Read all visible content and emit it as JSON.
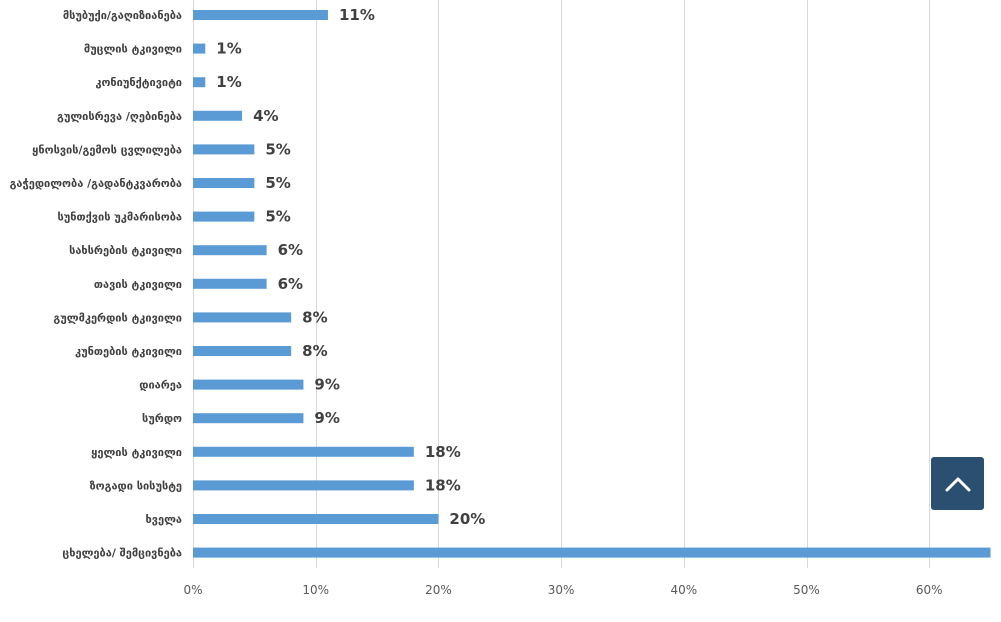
{
  "chart_data": {
    "type": "bar",
    "orientation": "horizontal",
    "categories": [
      "მსუბუქი/გაღიზიანება",
      "მუცლის ტკივილი",
      "კონიუნქტივიტი",
      "გულისრევა /ღებინება",
      "ყნოსვის/გემოს ცვლილება",
      "გაჭედილობა /გადანტკვარობა",
      "სუნთქვის უკმარისობა",
      "სახსრების ტკივილი",
      "თავის ტკივილი",
      "გულმკერდის ტკივილი",
      "კუნთების ტკივილი",
      "დიარეა",
      "სურდო",
      "ყელის ტკივილი",
      "ზოგადი სისუსტე",
      "ხველა",
      "ცხელება/ შემცივნება"
    ],
    "values": [
      11,
      1,
      1,
      4,
      5,
      5,
      5,
      6,
      6,
      8,
      8,
      9,
      9,
      18,
      18,
      20,
      65
    ],
    "data_labels": [
      "11%",
      "1%",
      "1%",
      "4%",
      "5%",
      "5%",
      "5%",
      "6%",
      "6%",
      "8%",
      "8%",
      "9%",
      "9%",
      "18%",
      "18%",
      "20%",
      ""
    ],
    "xlim": [
      0,
      65
    ],
    "x_ticks": [
      0,
      10,
      20,
      30,
      40,
      50,
      60
    ],
    "x_tick_labels": [
      "0%",
      "10%",
      "20%",
      "30%",
      "40%",
      "50%",
      "60%"
    ],
    "grid": true,
    "bar_color": "#5b9bd5",
    "text_color": "#404040"
  },
  "ui": {
    "scroll_top_icon": "chevron-up-icon",
    "scroll_top_color": "#2b4f71"
  }
}
